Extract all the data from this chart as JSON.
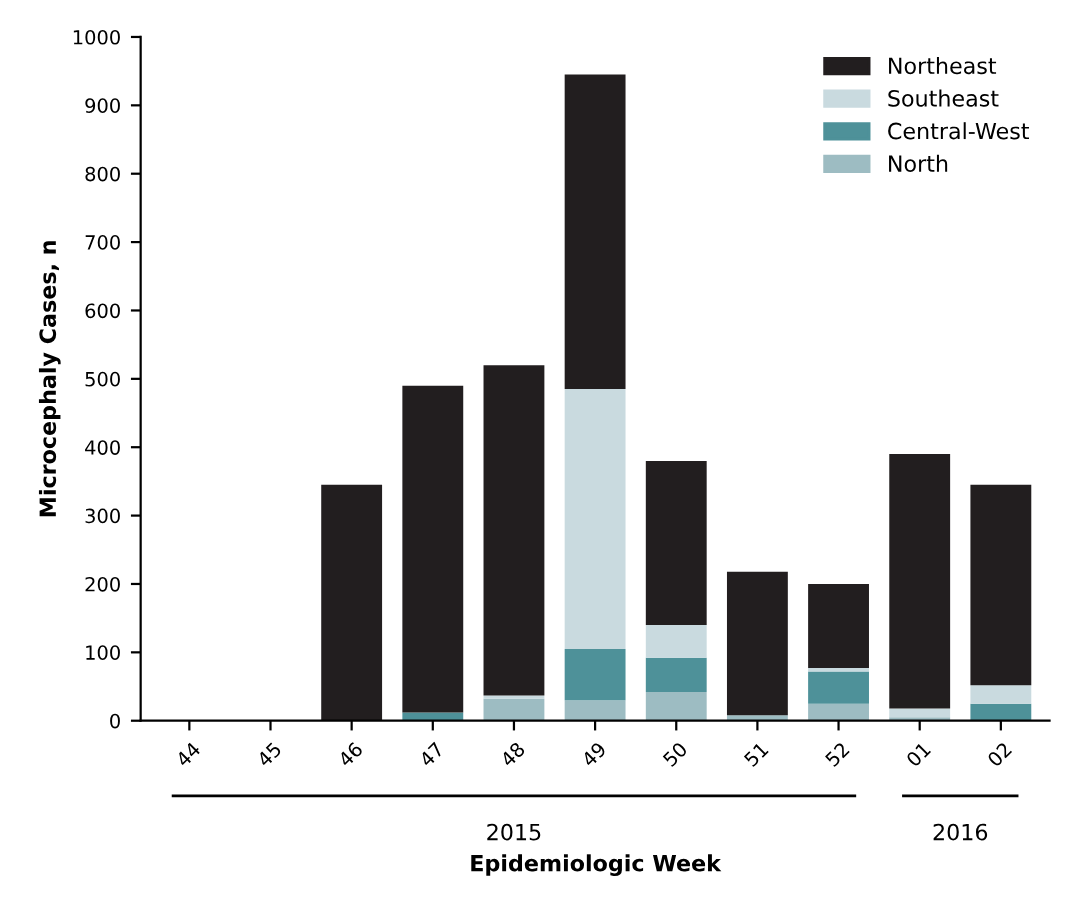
{
  "chart_data": {
    "type": "bar",
    "stacked": true,
    "ylabel": "Microcephaly Cases, n",
    "xlabel": "Epidemiologic Week",
    "categories": [
      "44",
      "45",
      "46",
      "47",
      "48",
      "49",
      "50",
      "51",
      "52",
      "01",
      "02"
    ],
    "series": [
      {
        "name": "North",
        "color": "#9dbcc2",
        "values": [
          0,
          0,
          0,
          0,
          32,
          30,
          42,
          8,
          25,
          5,
          0
        ]
      },
      {
        "name": "Central-West",
        "color": "#4e9199",
        "values": [
          0,
          0,
          0,
          12,
          0,
          75,
          50,
          0,
          47,
          0,
          25
        ]
      },
      {
        "name": "Southeast",
        "color": "#c9dadf",
        "values": [
          0,
          0,
          0,
          0,
          5,
          380,
          48,
          0,
          5,
          13,
          27
        ]
      },
      {
        "name": "Northeast",
        "color": "#221e1f",
        "values": [
          0,
          0,
          345,
          478,
          483,
          460,
          240,
          210,
          123,
          372,
          293
        ]
      }
    ],
    "ylim": [
      0,
      1000
    ],
    "yticks": [
      0,
      100,
      200,
      300,
      400,
      500,
      600,
      700,
      800,
      900,
      1000
    ],
    "annotations": [
      "2015",
      "2016"
    ],
    "grid": false,
    "legend": "top right"
  }
}
